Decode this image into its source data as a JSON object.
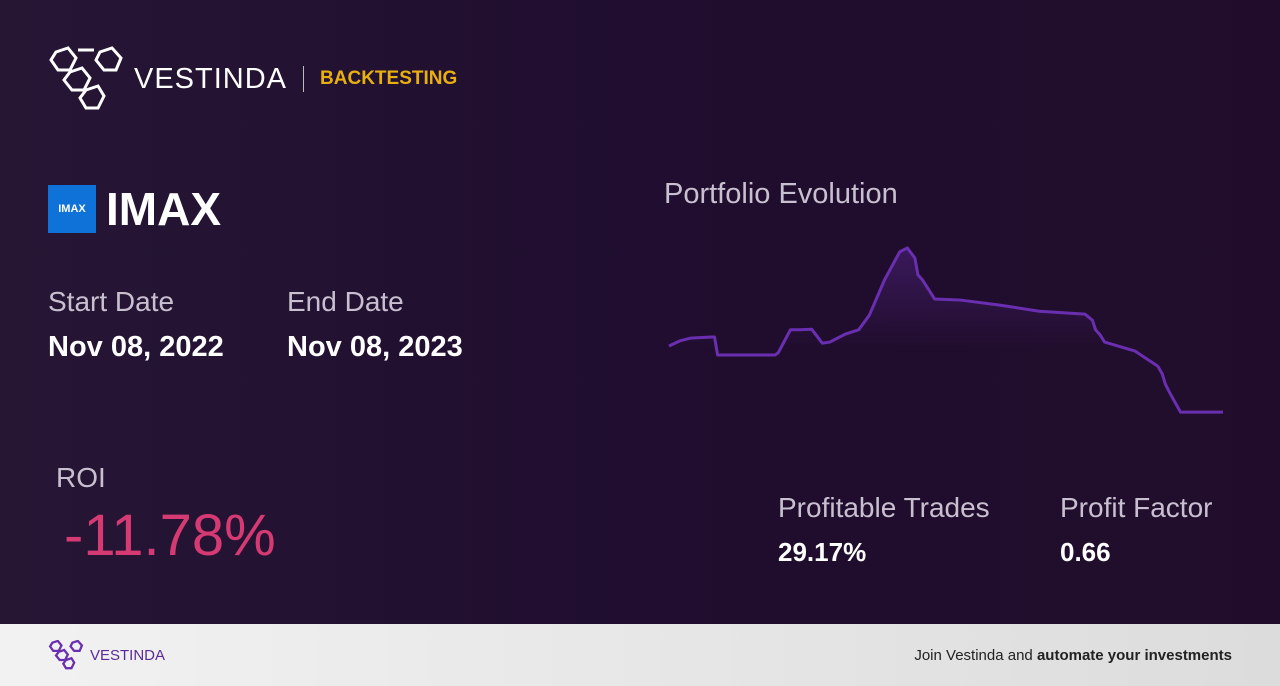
{
  "header": {
    "brand": "VESTINDA",
    "section": "BACKTESTING"
  },
  "asset": {
    "logo_text": "IMAX",
    "ticker": "IMAX",
    "logo_color": "#0f72d8"
  },
  "dates": {
    "start_label": "Start Date",
    "start_value": "Nov 08, 2022",
    "end_label": "End Date",
    "end_value": "Nov 08, 2023"
  },
  "roi": {
    "label": "ROI",
    "value": "-11.78%",
    "color": "#d63a73"
  },
  "stats": {
    "profitable_trades_label": "Profitable Trades",
    "profitable_trades_value": "29.17%",
    "profit_factor_label": "Profit Factor",
    "profit_factor_value": "0.66"
  },
  "chart_data": {
    "type": "area",
    "title": "Portfolio Evolution",
    "xlabel": "",
    "ylabel": "",
    "grid": false,
    "line_color": "#6a2fb0",
    "x": [
      0,
      7,
      14,
      28,
      30,
      32,
      70,
      72,
      80,
      86,
      94,
      101,
      106,
      116,
      125,
      132,
      142,
      152,
      157,
      162,
      164,
      167,
      175,
      192,
      218,
      244,
      274,
      279,
      281,
      284,
      287,
      302,
      307,
      317,
      322,
      325,
      327,
      330,
      337,
      365
    ],
    "values": [
      100,
      100.9,
      101.4,
      101.6,
      101.6,
      98.4,
      98.4,
      98.8,
      102.9,
      102.9,
      103.0,
      100.5,
      100.7,
      102.1,
      102.9,
      105.5,
      111.8,
      116.8,
      117.5,
      115.7,
      112.7,
      111.8,
      108.4,
      108.2,
      107.3,
      106.2,
      105.7,
      104.6,
      102.9,
      102.0,
      100.7,
      99.5,
      99.1,
      97.3,
      96.4,
      95.0,
      93.2,
      91.6,
      88.2,
      88.2
    ]
  },
  "footer": {
    "brand": "VESTINDA",
    "cta_prefix": "Join Vestinda and ",
    "cta_bold": "automate your investments"
  }
}
